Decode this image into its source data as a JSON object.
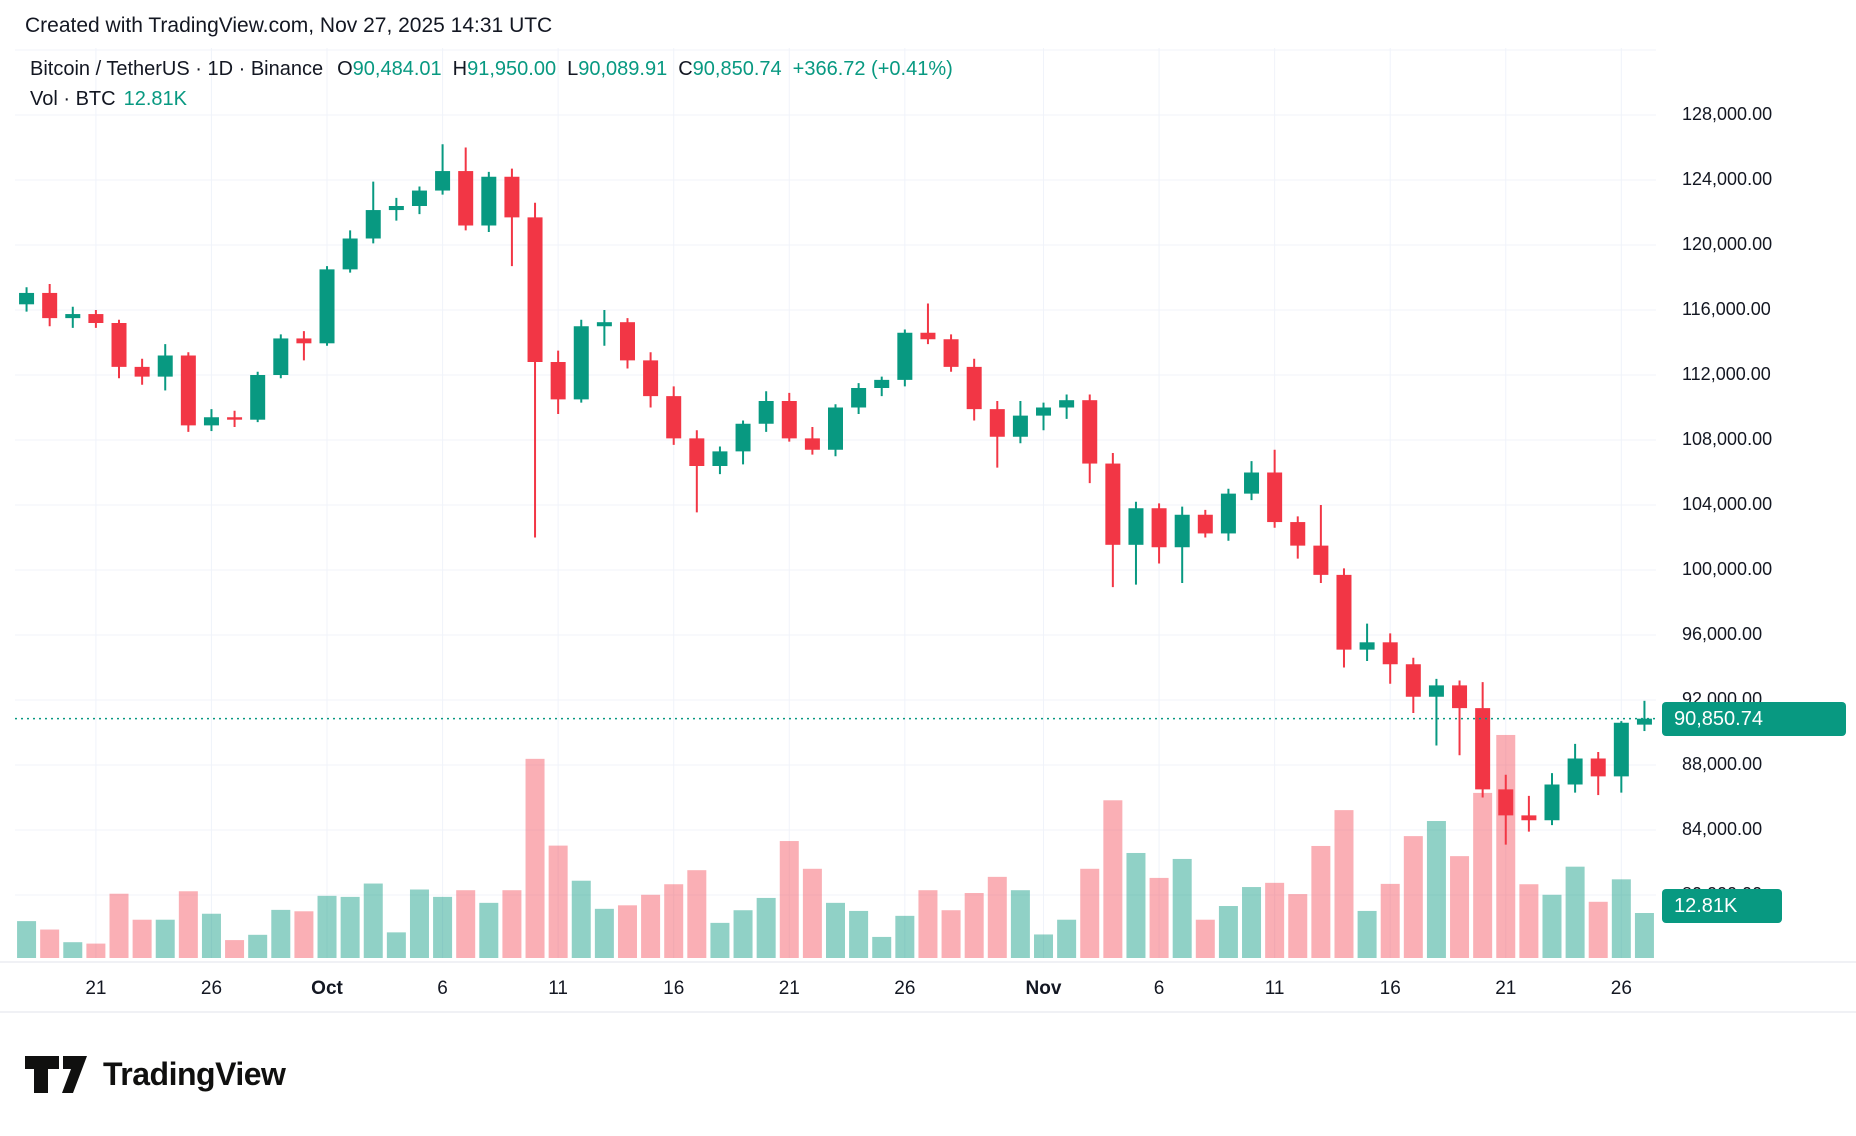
{
  "attribution": "Created with TradingView.com, Nov 27, 2025 14:31 UTC",
  "header": {
    "title": "Bitcoin / TetherUS · 1D · Binance",
    "ohlc": [
      {
        "label": "O",
        "value": "90,484.01"
      },
      {
        "label": "H",
        "value": "91,950.00"
      },
      {
        "label": "L",
        "value": "90,089.91"
      },
      {
        "label": "C",
        "value": "90,850.74"
      }
    ],
    "change": "+366.72 (+0.41%)",
    "volume_label": "Vol · BTC",
    "volume_value": "12.81K"
  },
  "price_axis": {
    "labels": [
      "128,000.00",
      "124,000.00",
      "120,000.00",
      "116,000.00",
      "112,000.00",
      "108,000.00",
      "104,000.00",
      "100,000.00",
      "96,000.00",
      "92,000.00",
      "88,000.00",
      "84,000.00",
      "80,000.00"
    ],
    "values": [
      128000,
      124000,
      120000,
      116000,
      112000,
      108000,
      104000,
      100000,
      96000,
      92000,
      88000,
      84000,
      80000
    ]
  },
  "time_axis": {
    "labels": [
      {
        "text": "21",
        "index": 3,
        "bold": false
      },
      {
        "text": "26",
        "index": 8,
        "bold": false
      },
      {
        "text": "Oct",
        "index": 13,
        "bold": true
      },
      {
        "text": "6",
        "index": 18,
        "bold": false
      },
      {
        "text": "11",
        "index": 23,
        "bold": false
      },
      {
        "text": "16",
        "index": 28,
        "bold": false
      },
      {
        "text": "21",
        "index": 33,
        "bold": false
      },
      {
        "text": "26",
        "index": 38,
        "bold": false
      },
      {
        "text": "Nov",
        "index": 44,
        "bold": true
      },
      {
        "text": "6",
        "index": 49,
        "bold": false
      },
      {
        "text": "11",
        "index": 54,
        "bold": false
      },
      {
        "text": "16",
        "index": 59,
        "bold": false
      },
      {
        "text": "21",
        "index": 64,
        "bold": false
      },
      {
        "text": "26",
        "index": 69,
        "bold": false
      }
    ]
  },
  "current": {
    "price": 90850.74,
    "price_label": "90,850.74",
    "volume_k": 12.81,
    "volume_label": "12.81K"
  },
  "colors": {
    "up": "#089981",
    "down": "#f23645",
    "vol_up": "rgba(8,153,129,0.45)",
    "vol_down": "rgba(242,54,69,0.40)",
    "grid": "#f0f3fa",
    "axis_text": "#131722",
    "badge_bg": "#089981",
    "badge_text": "#ffffff",
    "dotted_line": "#089981",
    "border": "#e0e3eb"
  },
  "logo_text": "TradingView",
  "chart_data": {
    "type": "candlestick+volume",
    "symbol": "BTCUSDT",
    "interval": "1D",
    "exchange": "Binance",
    "price_range_shown": [
      80000,
      128000
    ],
    "volume_unit": "K BTC",
    "columns": [
      "date",
      "open",
      "high",
      "low",
      "close",
      "volume_k"
    ],
    "candles": [
      [
        "2025-09-18",
        116350,
        117400,
        115900,
        117050,
        10.5
      ],
      [
        "2025-09-19",
        117050,
        117600,
        115000,
        115500,
        8.1
      ],
      [
        "2025-09-20",
        115500,
        116200,
        114900,
        115750,
        4.5
      ],
      [
        "2025-09-21",
        115750,
        116000,
        114900,
        115200,
        4.1
      ],
      [
        "2025-09-22",
        115200,
        115400,
        111800,
        112500,
        18.3
      ],
      [
        "2025-09-23",
        112500,
        113000,
        111400,
        111900,
        10.9
      ],
      [
        "2025-09-24",
        111900,
        113900,
        111050,
        113200,
        10.9
      ],
      [
        "2025-09-25",
        113200,
        113400,
        108500,
        108900,
        19.0
      ],
      [
        "2025-09-26",
        108900,
        109900,
        108550,
        109400,
        12.6
      ],
      [
        "2025-09-27",
        109400,
        109800,
        108800,
        109250,
        5.1
      ],
      [
        "2025-09-28",
        109250,
        112200,
        109100,
        112000,
        6.6
      ],
      [
        "2025-09-29",
        112000,
        114500,
        111800,
        114250,
        13.7
      ],
      [
        "2025-09-30",
        114250,
        114700,
        112900,
        113950,
        13.3
      ],
      [
        "2025-10-01",
        113950,
        118700,
        113800,
        118500,
        17.7
      ],
      [
        "2025-10-02",
        118500,
        120900,
        118300,
        120400,
        17.4
      ],
      [
        "2025-10-03",
        120400,
        123900,
        120100,
        122150,
        21.2
      ],
      [
        "2025-10-04",
        122150,
        122900,
        121500,
        122400,
        7.3
      ],
      [
        "2025-10-05",
        122400,
        123600,
        121900,
        123350,
        19.5
      ],
      [
        "2025-10-06",
        123350,
        126200,
        123100,
        124550,
        17.4
      ],
      [
        "2025-10-07",
        124550,
        126000,
        120900,
        121200,
        19.3
      ],
      [
        "2025-10-08",
        121200,
        124500,
        120800,
        124200,
        15.7
      ],
      [
        "2025-10-09",
        124200,
        124700,
        118700,
        121700,
        19.3
      ],
      [
        "2025-10-10",
        121700,
        122600,
        102000,
        112800,
        56.7
      ],
      [
        "2025-10-11",
        112800,
        113500,
        109600,
        110500,
        32.0
      ],
      [
        "2025-10-12",
        110500,
        115400,
        110300,
        115000,
        22.0
      ],
      [
        "2025-10-13",
        115000,
        116000,
        113800,
        115250,
        14.0
      ],
      [
        "2025-10-14",
        115250,
        115500,
        112400,
        112900,
        15.0
      ],
      [
        "2025-10-15",
        112900,
        113400,
        110000,
        110700,
        18.0
      ],
      [
        "2025-10-16",
        110700,
        111300,
        107700,
        108100,
        21.0
      ],
      [
        "2025-10-17",
        108100,
        108600,
        103550,
        106400,
        25.0
      ],
      [
        "2025-10-18",
        106400,
        107600,
        105900,
        107300,
        10.0
      ],
      [
        "2025-10-19",
        107300,
        109200,
        106500,
        109000,
        13.6
      ],
      [
        "2025-10-20",
        109000,
        111000,
        108500,
        110400,
        17.1
      ],
      [
        "2025-10-21",
        110400,
        110900,
        107900,
        108100,
        33.3
      ],
      [
        "2025-10-22",
        108100,
        108800,
        107100,
        107400,
        25.4
      ],
      [
        "2025-10-23",
        107400,
        110200,
        107000,
        110000,
        15.7
      ],
      [
        "2025-10-24",
        110000,
        111500,
        109600,
        111200,
        13.4
      ],
      [
        "2025-10-25",
        111200,
        111900,
        110700,
        111700,
        6.0
      ],
      [
        "2025-10-26",
        111700,
        114800,
        111300,
        114600,
        12.0
      ],
      [
        "2025-10-27",
        114600,
        116400,
        113900,
        114200,
        19.3
      ],
      [
        "2025-10-28",
        114200,
        114500,
        112200,
        112500,
        13.6
      ],
      [
        "2025-10-29",
        112500,
        113000,
        109200,
        109900,
        18.5
      ],
      [
        "2025-10-30",
        109900,
        110400,
        106300,
        108200,
        23.1
      ],
      [
        "2025-10-31",
        108200,
        110400,
        107800,
        109500,
        19.3
      ],
      [
        "2025-11-01",
        109500,
        110300,
        108600,
        110000,
        6.7
      ],
      [
        "2025-11-02",
        110000,
        110800,
        109300,
        110450,
        10.9
      ],
      [
        "2025-11-03",
        110450,
        110800,
        105350,
        106550,
        25.4
      ],
      [
        "2025-11-04",
        106550,
        107200,
        98950,
        101550,
        44.9
      ],
      [
        "2025-11-05",
        101550,
        104200,
        99100,
        103800,
        29.9
      ],
      [
        "2025-11-06",
        103800,
        104100,
        100400,
        101400,
        22.8
      ],
      [
        "2025-11-07",
        101400,
        103900,
        99200,
        103400,
        28.2
      ],
      [
        "2025-11-08",
        103400,
        103700,
        102000,
        102250,
        10.9
      ],
      [
        "2025-11-09",
        102250,
        105000,
        101800,
        104700,
        14.8
      ],
      [
        "2025-11-10",
        104700,
        106700,
        104300,
        106000,
        20.2
      ],
      [
        "2025-11-11",
        106000,
        107400,
        102600,
        102950,
        21.4
      ],
      [
        "2025-11-12",
        102950,
        103300,
        100700,
        101500,
        18.2
      ],
      [
        "2025-11-13",
        101500,
        104000,
        99200,
        99700,
        31.9
      ],
      [
        "2025-11-14",
        99700,
        100100,
        94000,
        95100,
        42.1
      ],
      [
        "2025-11-15",
        95100,
        96700,
        94400,
        95550,
        13.4
      ],
      [
        "2025-11-16",
        95550,
        96100,
        93000,
        94200,
        21.1
      ],
      [
        "2025-11-17",
        94200,
        94600,
        91200,
        92200,
        34.7
      ],
      [
        "2025-11-18",
        92200,
        93300,
        89200,
        92900,
        39.0
      ],
      [
        "2025-11-19",
        92900,
        93200,
        88600,
        91500,
        29.0
      ],
      [
        "2025-11-20",
        91500,
        93100,
        86000,
        86500,
        47.0
      ],
      [
        "2025-11-21",
        86500,
        87400,
        83100,
        84900,
        63.5
      ],
      [
        "2025-11-22",
        84900,
        86100,
        83900,
        84600,
        21.0
      ],
      [
        "2025-11-23",
        84600,
        87500,
        84300,
        86800,
        18.0
      ],
      [
        "2025-11-24",
        86800,
        89300,
        86300,
        88400,
        26.0
      ],
      [
        "2025-11-25",
        88400,
        88800,
        86150,
        87300,
        16.0
      ],
      [
        "2025-11-26",
        87300,
        90700,
        86300,
        90600,
        22.4
      ],
      [
        "2025-11-27",
        90484.01,
        91950,
        90089.91,
        90850.74,
        12.81
      ]
    ]
  }
}
